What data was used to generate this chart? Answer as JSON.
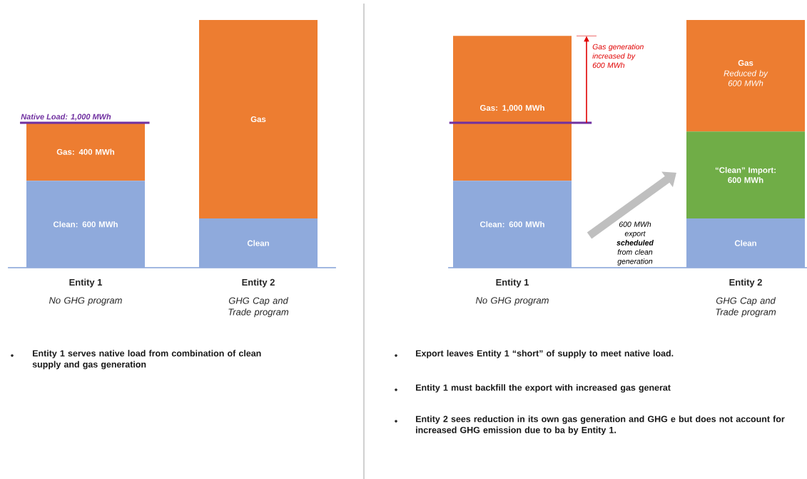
{
  "chart_data": [
    {
      "type": "bar",
      "stacked": true,
      "categories": [
        "Entity 1",
        "Entity 2"
      ],
      "ylim": [
        0,
        1710
      ],
      "series": [
        {
          "color": "#8faadc",
          "values": [
            600,
            340
          ],
          "value_labels": [
            "Clean: 600 MWh",
            "Clean"
          ]
        },
        {
          "color": "#ed7d31",
          "values": [
            400,
            1370
          ],
          "value_labels": [
            "Gas: 400 MWh",
            "Gas"
          ]
        }
      ],
      "ref_lines": [
        {
          "axis": "y",
          "value": 1000,
          "label": "Native Load: 1,000 MWh",
          "color": "#7030a0"
        }
      ],
      "annotations": [
        "No GHG program",
        "GHG Cap and Trade program",
        "Entity 1 serves native load from combination of clean supply and gas generation"
      ]
    },
    {
      "type": "bar",
      "stacked": true,
      "categories": [
        "Entity 1",
        "Entity 2"
      ],
      "ylim": [
        0,
        1710
      ],
      "series": [
        {
          "color": "#8faadc",
          "values": [
            600,
            340
          ],
          "value_labels": [
            "Clean: 600 MWh",
            "Clean"
          ]
        },
        {
          "color": "#70ad47",
          "values": [
            null,
            600
          ],
          "value_labels": [
            null,
            "“Clean” Import: 600 MWh"
          ]
        },
        {
          "color": "#ed7d31",
          "values": [
            1000,
            770
          ],
          "value_labels": [
            "Gas: 1,000 MWh",
            "Gas"
          ]
        }
      ],
      "ref_lines": [
        {
          "axis": "y",
          "value": 1000,
          "color": "#7030a0"
        }
      ],
      "annotations": [
        "Gas generation increased by 600 MWh",
        "600 MWh export **scheduled** from clean generation",
        "Reduced by 600 MWh",
        "No GHG program",
        "GHG Cap and Trade program",
        "Export leaves Entity 1 “short” of supply to meet native load.",
        "Entity 1 must backfill the export with increased gas generat",
        "Entity 2 sees reduction in its own gas generation and GHG e but does not account for increased GHG emission due to ba by Entity 1."
      ]
    }
  ]
}
